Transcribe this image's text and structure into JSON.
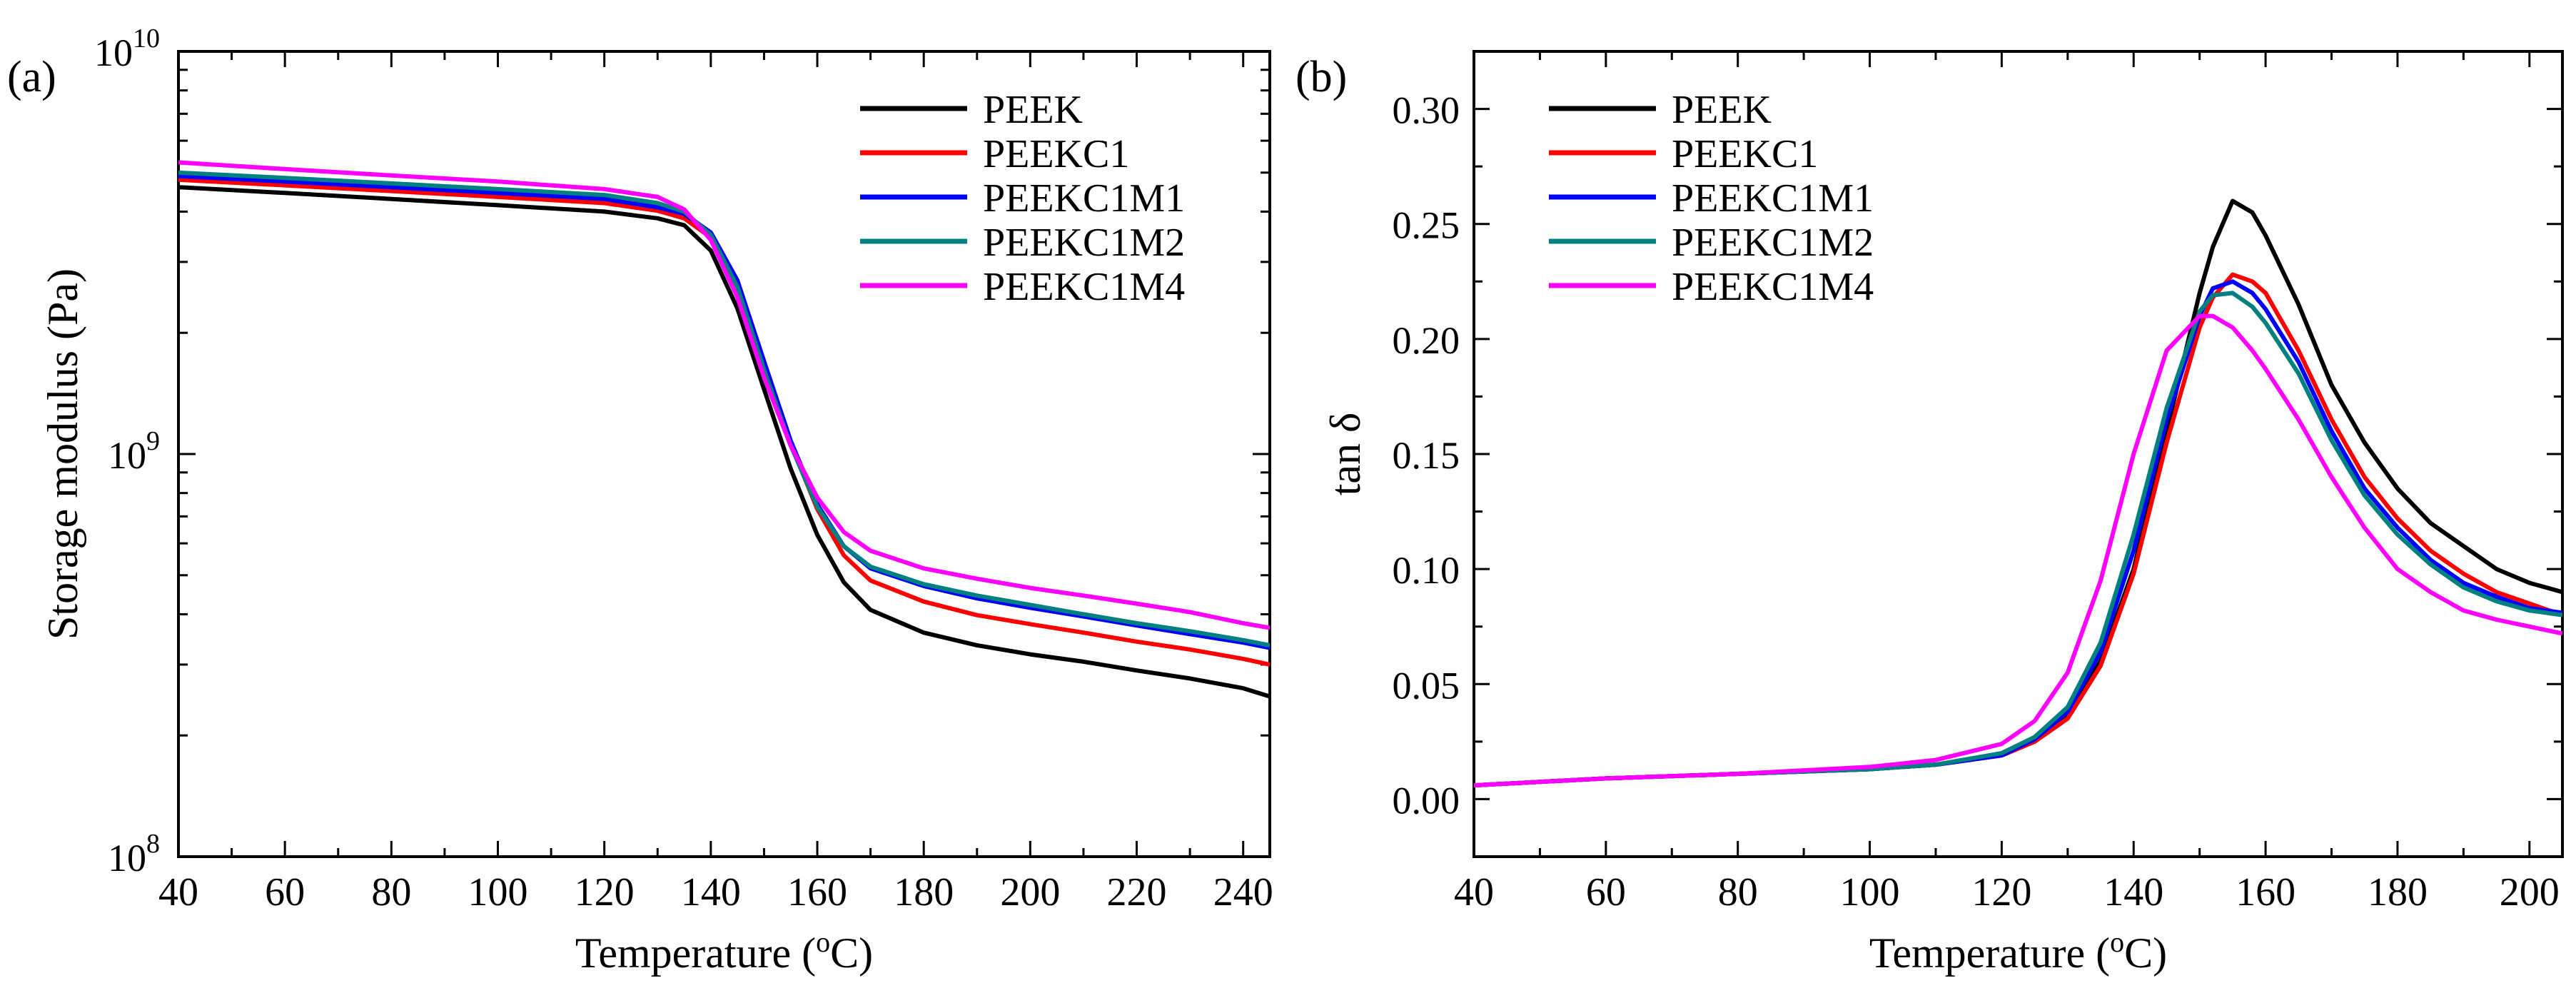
{
  "chart_data": [
    {
      "panel_label": "(a)",
      "type": "line",
      "xlabel": "Temperature (oC)",
      "ylabel": "Storage modulus (Pa)",
      "xlim": [
        40,
        245
      ],
      "ylim": [
        100000000,
        10000000000
      ],
      "yscale": "log",
      "xticks": [
        40,
        60,
        80,
        100,
        120,
        140,
        160,
        180,
        200,
        220,
        240
      ],
      "xtick_labels": [
        "40",
        "60",
        "80",
        "100",
        "120",
        "140",
        "160",
        "180",
        "200",
        "220",
        "240"
      ],
      "ytick_labels": [
        {
          "base": "10",
          "exp": "8"
        },
        {
          "base": "10",
          "exp": "9"
        },
        {
          "base": "10",
          "exp": "10"
        }
      ],
      "legend_position": "top-right",
      "grid": false,
      "x": [
        40,
        60,
        80,
        100,
        120,
        130,
        135,
        140,
        145,
        150,
        155,
        160,
        165,
        170,
        180,
        190,
        200,
        210,
        220,
        230,
        240,
        245
      ],
      "series": [
        {
          "name": "PEEK",
          "color": "#000000",
          "values": [
            4600000000.0,
            4450000000.0,
            4300000000.0,
            4150000000.0,
            4000000000.0,
            3850000000.0,
            3700000000.0,
            3200000000.0,
            2300000000.0,
            1450000000.0,
            920000000.0,
            630000000.0,
            480000000.0,
            410000000.0,
            360000000.0,
            335000000.0,
            318000000.0,
            305000000.0,
            290000000.0,
            277000000.0,
            262000000.0,
            250000000.0
          ]
        },
        {
          "name": "PEEKC1",
          "color": "#ff0000",
          "values": [
            4800000000.0,
            4650000000.0,
            4500000000.0,
            4350000000.0,
            4200000000.0,
            4020000000.0,
            3850000000.0,
            3450000000.0,
            2600000000.0,
            1650000000.0,
            1060000000.0,
            730000000.0,
            560000000.0,
            485000000.0,
            430000000.0,
            398000000.0,
            378000000.0,
            360000000.0,
            342000000.0,
            327000000.0,
            310000000.0,
            300000000.0
          ]
        },
        {
          "name": "PEEKC1M1",
          "color": "#0000ff",
          "values": [
            4900000000.0,
            4750000000.0,
            4600000000.0,
            4450000000.0,
            4300000000.0,
            4100000000.0,
            3950000000.0,
            3550000000.0,
            2700000000.0,
            1700000000.0,
            1080000000.0,
            750000000.0,
            590000000.0,
            520000000.0,
            470000000.0,
            438000000.0,
            415000000.0,
            395000000.0,
            375000000.0,
            357000000.0,
            340000000.0,
            330000000.0
          ]
        },
        {
          "name": "PEEKC1M2",
          "color": "#008080",
          "values": [
            5000000000.0,
            4850000000.0,
            4700000000.0,
            4550000000.0,
            4400000000.0,
            4200000000.0,
            4000000000.0,
            3500000000.0,
            2600000000.0,
            1620000000.0,
            1050000000.0,
            740000000.0,
            590000000.0,
            525000000.0,
            475000000.0,
            445000000.0,
            422000000.0,
            400000000.0,
            380000000.0,
            363000000.0,
            345000000.0,
            335000000.0
          ]
        },
        {
          "name": "PEEKC1M4",
          "color": "#ff00ff",
          "values": [
            5300000000.0,
            5100000000.0,
            4920000000.0,
            4750000000.0,
            4550000000.0,
            4350000000.0,
            4050000000.0,
            3400000000.0,
            2450000000.0,
            1550000000.0,
            1050000000.0,
            780000000.0,
            640000000.0,
            575000000.0,
            520000000.0,
            490000000.0,
            465000000.0,
            445000000.0,
            425000000.0,
            405000000.0,
            380000000.0,
            370000000.0
          ]
        }
      ]
    },
    {
      "panel_label": "(b)",
      "type": "line",
      "xlabel": "Temperature (oC)",
      "ylabel": "tan δ",
      "xlim": [
        40,
        205
      ],
      "ylim": [
        -0.025,
        0.325
      ],
      "xticks": [
        40,
        60,
        80,
        100,
        120,
        140,
        160,
        180,
        200
      ],
      "xtick_labels": [
        "40",
        "60",
        "80",
        "100",
        "120",
        "140",
        "160",
        "180",
        "200"
      ],
      "yticks": [
        0.0,
        0.05,
        0.1,
        0.15,
        0.2,
        0.25,
        0.3
      ],
      "ytick_labels": [
        "0.00",
        "0.05",
        "0.10",
        "0.15",
        "0.20",
        "0.25",
        "0.30"
      ],
      "legend_position": "top-left",
      "grid": false,
      "x": [
        40,
        60,
        80,
        100,
        110,
        120,
        125,
        130,
        135,
        140,
        145,
        150,
        152,
        155,
        158,
        160,
        165,
        170,
        175,
        180,
        185,
        190,
        195,
        200,
        205
      ],
      "series": [
        {
          "name": "PEEK",
          "color": "#000000",
          "values": [
            0.006,
            0.009,
            0.011,
            0.013,
            0.015,
            0.019,
            0.025,
            0.036,
            0.06,
            0.1,
            0.16,
            0.22,
            0.24,
            0.26,
            0.255,
            0.245,
            0.215,
            0.18,
            0.155,
            0.135,
            0.12,
            0.11,
            0.1,
            0.094,
            0.09
          ]
        },
        {
          "name": "PEEKC1",
          "color": "#ff0000",
          "values": [
            0.006,
            0.009,
            0.011,
            0.013,
            0.015,
            0.019,
            0.025,
            0.035,
            0.058,
            0.098,
            0.155,
            0.205,
            0.218,
            0.228,
            0.225,
            0.22,
            0.195,
            0.165,
            0.14,
            0.122,
            0.108,
            0.098,
            0.09,
            0.085,
            0.08
          ]
        },
        {
          "name": "PEEKC1M1",
          "color": "#0000ff",
          "values": [
            0.006,
            0.009,
            0.011,
            0.013,
            0.015,
            0.019,
            0.026,
            0.038,
            0.064,
            0.108,
            0.165,
            0.21,
            0.222,
            0.225,
            0.22,
            0.213,
            0.19,
            0.16,
            0.135,
            0.118,
            0.104,
            0.094,
            0.088,
            0.083,
            0.081
          ]
        },
        {
          "name": "PEEKC1M2",
          "color": "#008080",
          "values": [
            0.006,
            0.009,
            0.011,
            0.013,
            0.015,
            0.02,
            0.027,
            0.04,
            0.068,
            0.115,
            0.17,
            0.212,
            0.219,
            0.22,
            0.214,
            0.207,
            0.185,
            0.156,
            0.132,
            0.115,
            0.102,
            0.092,
            0.086,
            0.082,
            0.08
          ]
        },
        {
          "name": "PEEKC1M4",
          "color": "#ff00ff",
          "values": [
            0.006,
            0.009,
            0.011,
            0.014,
            0.017,
            0.024,
            0.034,
            0.055,
            0.095,
            0.15,
            0.195,
            0.21,
            0.21,
            0.205,
            0.195,
            0.187,
            0.165,
            0.14,
            0.118,
            0.1,
            0.09,
            0.082,
            0.078,
            0.075,
            0.072
          ]
        }
      ]
    }
  ]
}
